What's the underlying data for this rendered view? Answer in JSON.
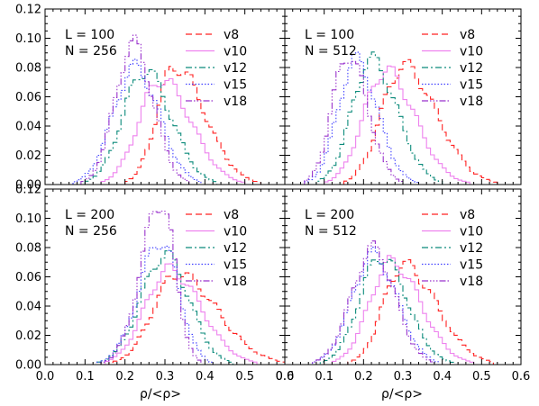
{
  "figure": {
    "xlabel": "ρ/<ρ>",
    "legend_series": [
      "v8",
      "v10",
      "v12",
      "v15",
      "v18"
    ],
    "colors": {
      "v8": "#ff2020",
      "v10": "#ee82ee",
      "v12": "#0a8a7a",
      "v15": "#4040ff",
      "v18": "#9932cc"
    }
  },
  "chart_data": [
    {
      "type": "line",
      "panel": "top-left",
      "annotation_lines": [
        "L = 100",
        "N = 256"
      ],
      "xlim": [
        0,
        0.6
      ],
      "ylim": [
        0,
        0.12
      ],
      "xticks": [
        "0.0",
        "0.1",
        "0.2",
        "0.3",
        "0.4",
        "0.5",
        "0.6"
      ],
      "yticks": [
        "0.00",
        "0.02",
        "0.04",
        "0.06",
        "0.08",
        "0.10",
        "0.12"
      ],
      "legend": "top-right",
      "series": [
        {
          "name": "v8",
          "peak": 0.325,
          "height": 0.081,
          "wl": 0.045,
          "wr": 0.075
        },
        {
          "name": "v10",
          "peak": 0.29,
          "height": 0.072,
          "wl": 0.055,
          "wr": 0.075
        },
        {
          "name": "v12",
          "peak": 0.25,
          "height": 0.078,
          "wl": 0.055,
          "wr": 0.065
        },
        {
          "name": "v15",
          "peak": 0.225,
          "height": 0.08,
          "wl": 0.055,
          "wr": 0.06
        },
        {
          "name": "v18",
          "peak": 0.22,
          "height": 0.096,
          "wl": 0.045,
          "wr": 0.05
        }
      ]
    },
    {
      "type": "line",
      "panel": "top-right",
      "annotation_lines": [
        "L = 100",
        "N = 512"
      ],
      "xlim": [
        0,
        0.6
      ],
      "ylim": [
        0,
        0.12
      ],
      "xticks": [
        "0.0",
        "0.1",
        "0.2",
        "0.3",
        "0.4",
        "0.5",
        "0.6"
      ],
      "yticks": [],
      "legend": "top-right",
      "series": [
        {
          "name": "v8",
          "peak": 0.3,
          "height": 0.081,
          "wl": 0.055,
          "wr": 0.085
        },
        {
          "name": "v10",
          "peak": 0.255,
          "height": 0.078,
          "wl": 0.055,
          "wr": 0.075
        },
        {
          "name": "v12",
          "peak": 0.22,
          "height": 0.085,
          "wl": 0.05,
          "wr": 0.065
        },
        {
          "name": "v15",
          "peak": 0.18,
          "height": 0.085,
          "wl": 0.045,
          "wr": 0.055
        },
        {
          "name": "v18",
          "peak": 0.16,
          "height": 0.089,
          "wl": 0.04,
          "wr": 0.05
        }
      ]
    },
    {
      "type": "line",
      "panel": "bottom-left",
      "annotation_lines": [
        "L = 200",
        "N = 256"
      ],
      "xlim": [
        0,
        0.6
      ],
      "ylim": [
        0,
        0.12
      ],
      "xticks": [
        "0.0",
        "0.1",
        "0.2",
        "0.3",
        "0.4",
        "0.5",
        "0.6"
      ],
      "yticks": [
        "0.00",
        "0.02",
        "0.04",
        "0.06",
        "0.08",
        "0.10",
        "0.12"
      ],
      "legend": "top-right",
      "series": [
        {
          "name": "v8",
          "peak": 0.33,
          "height": 0.062,
          "wl": 0.06,
          "wr": 0.1
        },
        {
          "name": "v10",
          "peak": 0.31,
          "height": 0.065,
          "wl": 0.06,
          "wr": 0.08
        },
        {
          "name": "v12",
          "peak": 0.3,
          "height": 0.075,
          "wl": 0.06,
          "wr": 0.06
        },
        {
          "name": "v15",
          "peak": 0.29,
          "height": 0.085,
          "wl": 0.055,
          "wr": 0.045
        },
        {
          "name": "v18",
          "peak": 0.29,
          "height": 0.112,
          "wl": 0.05,
          "wr": 0.035
        }
      ]
    },
    {
      "type": "line",
      "panel": "bottom-right",
      "annotation_lines": [
        "L = 200",
        "N = 512"
      ],
      "xlim": [
        0,
        0.6
      ],
      "ylim": [
        0,
        0.12
      ],
      "xticks": [
        "0.0",
        "0.1",
        "0.2",
        "0.3",
        "0.4",
        "0.5",
        "0.6"
      ],
      "yticks": [],
      "legend": "top-right",
      "series": [
        {
          "name": "v8",
          "peak": 0.3,
          "height": 0.068,
          "wl": 0.05,
          "wr": 0.085
        },
        {
          "name": "v10",
          "peak": 0.27,
          "height": 0.07,
          "wl": 0.055,
          "wr": 0.075
        },
        {
          "name": "v12",
          "peak": 0.245,
          "height": 0.074,
          "wl": 0.055,
          "wr": 0.065
        },
        {
          "name": "v15",
          "peak": 0.225,
          "height": 0.075,
          "wl": 0.055,
          "wr": 0.06
        },
        {
          "name": "v18",
          "peak": 0.225,
          "height": 0.079,
          "wl": 0.055,
          "wr": 0.055
        }
      ]
    }
  ]
}
